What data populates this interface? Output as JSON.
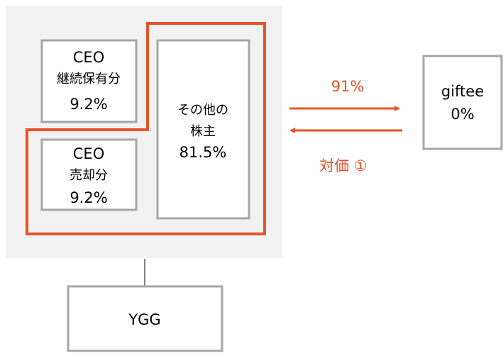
{
  "nodes": [
    {
      "lines": [
        "CEO",
        "継続保有分",
        "9.2%"
      ]
    },
    {
      "lines": [
        "CEO",
        "売却分",
        "9.2%"
      ]
    },
    {
      "lines": [
        "その他の",
        "株主",
        "81.5%"
      ]
    },
    {
      "lines": [
        "giftee",
        "0%"
      ]
    },
    {
      "lines": [
        "YGG"
      ]
    }
  ],
  "arrows": [
    {
      "label": "91%"
    },
    {
      "label": "対価 ①"
    }
  ]
}
